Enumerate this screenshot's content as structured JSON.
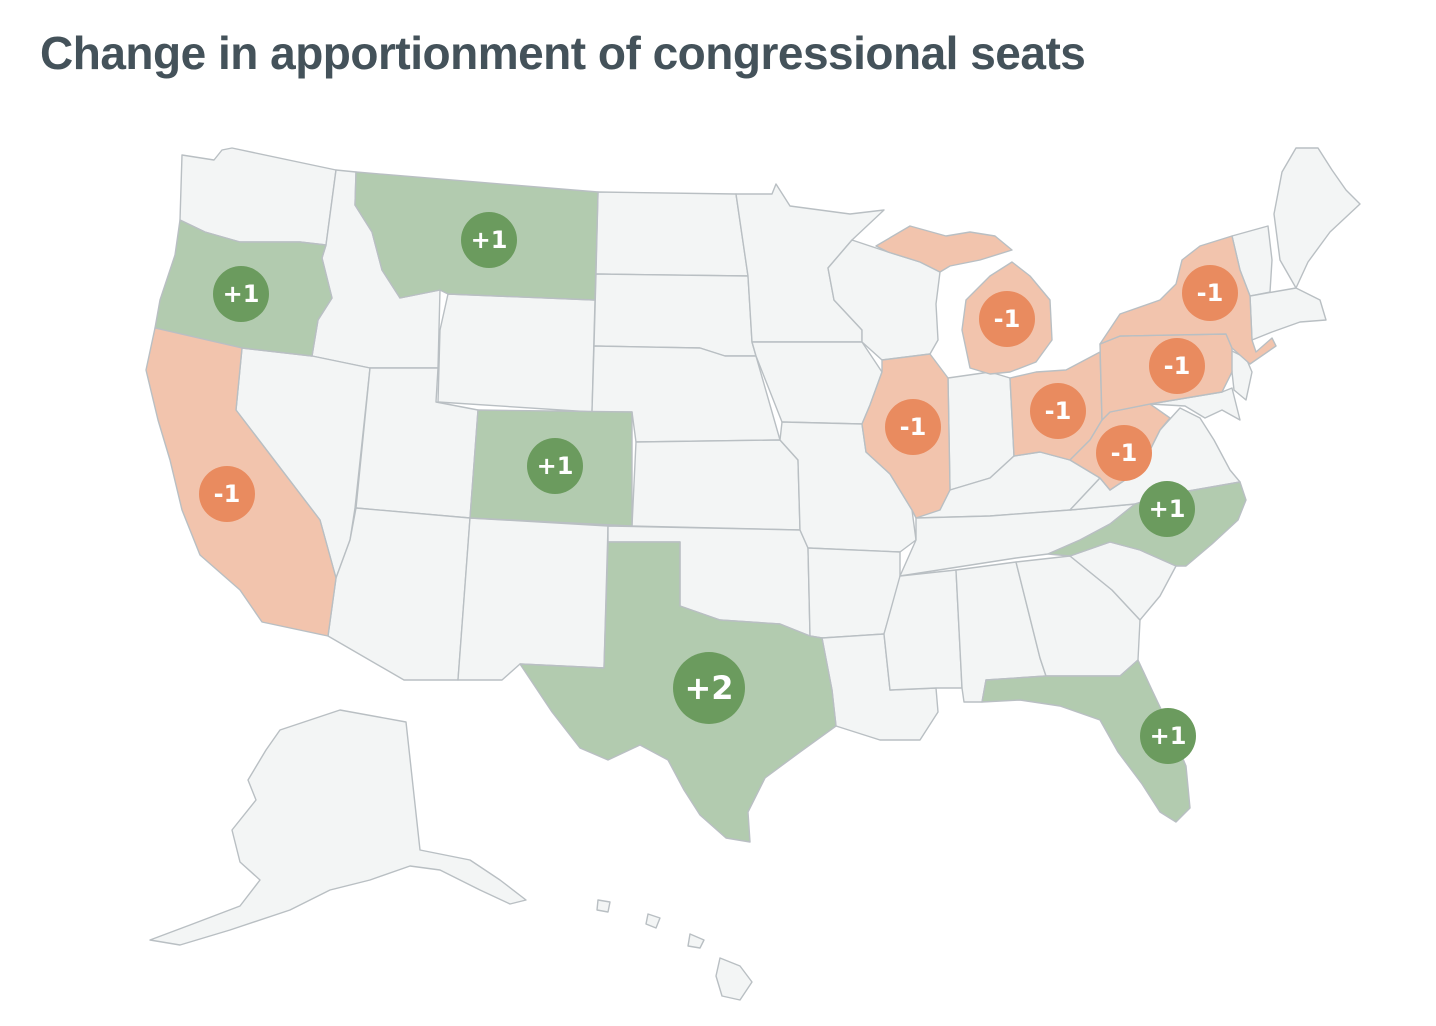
{
  "title": "Change in apportionment of congressional seats",
  "colors": {
    "gain_fill": "#b2cbaf",
    "gain_badge": "#6b9b5e",
    "loss_fill": "#f2c4ad",
    "loss_badge": "#e98b5f",
    "neutral_fill": "#f3f5f5",
    "border": "#b9bfc3"
  },
  "states": [
    {
      "state": "Texas",
      "change": 2,
      "label": "+2"
    },
    {
      "state": "Colorado",
      "change": 1,
      "label": "+1"
    },
    {
      "state": "Florida",
      "change": 1,
      "label": "+1"
    },
    {
      "state": "Montana",
      "change": 1,
      "label": "+1"
    },
    {
      "state": "North Carolina",
      "change": 1,
      "label": "+1"
    },
    {
      "state": "Oregon",
      "change": 1,
      "label": "+1"
    },
    {
      "state": "California",
      "change": -1,
      "label": "-1"
    },
    {
      "state": "Illinois",
      "change": -1,
      "label": "-1"
    },
    {
      "state": "Michigan",
      "change": -1,
      "label": "-1"
    },
    {
      "state": "New York",
      "change": -1,
      "label": "-1"
    },
    {
      "state": "Ohio",
      "change": -1,
      "label": "-1"
    },
    {
      "state": "Pennsylvania",
      "change": -1,
      "label": "-1"
    },
    {
      "state": "West Virginia",
      "change": -1,
      "label": "-1"
    }
  ]
}
